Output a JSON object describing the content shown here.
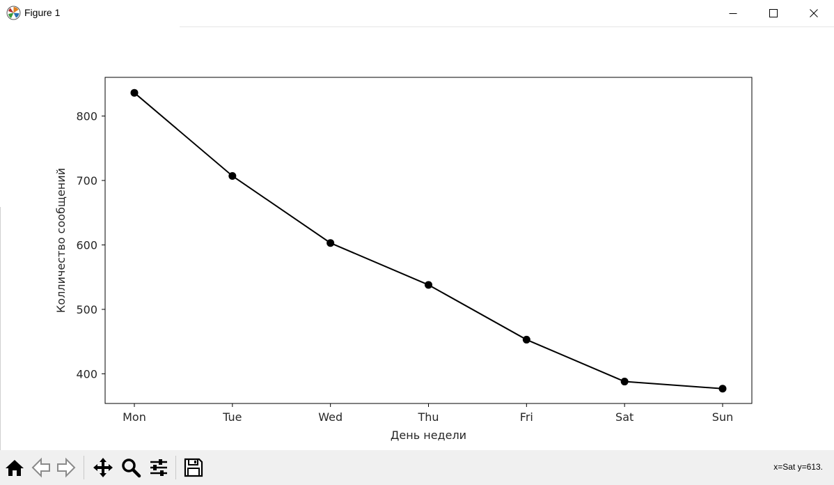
{
  "window": {
    "title": "Figure 1",
    "app_icon": "matplotlib-logo-icon",
    "controls": [
      "minimize-icon",
      "maximize-icon",
      "close-icon"
    ]
  },
  "toolbar": {
    "buttons": [
      "home-icon",
      "back-arrow-icon",
      "forward-arrow-icon",
      "pan-icon",
      "zoom-icon",
      "configure-subplots-icon",
      "save-icon"
    ],
    "status": "x=Sat y=613."
  },
  "chart_data": {
    "type": "line",
    "categories": [
      "Mon",
      "Tue",
      "Wed",
      "Thu",
      "Fri",
      "Sat",
      "Sun"
    ],
    "values": [
      836,
      707,
      603,
      538,
      453,
      388,
      377
    ],
    "xlabel": "День недели",
    "ylabel": "Колличество сообщений",
    "yticks": [
      400,
      500,
      600,
      700,
      800
    ],
    "ylim": [
      354,
      860
    ],
    "marker": "circle",
    "line_color": "#000000",
    "grid": false
  }
}
